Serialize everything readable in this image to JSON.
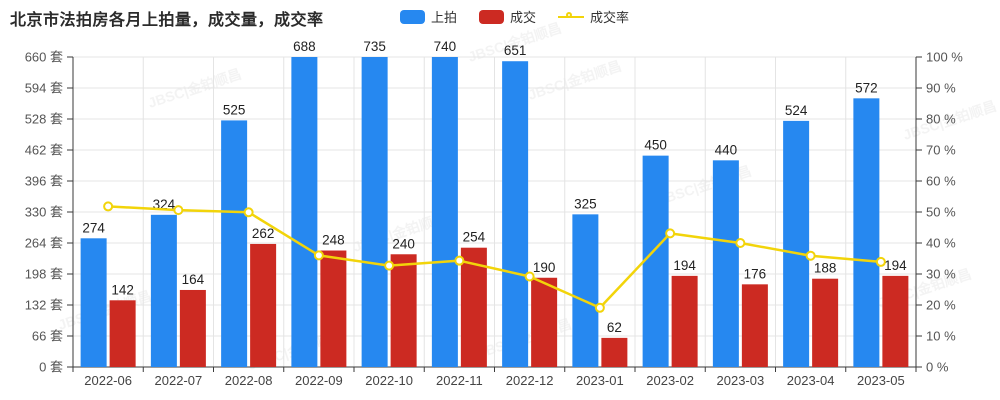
{
  "title": "北京市法拍房各月上拍量，成交量，成交率",
  "legend": [
    {
      "label": "上拍",
      "color": "#2688F0",
      "type": "bar"
    },
    {
      "label": "成交",
      "color": "#CC2A22",
      "type": "bar"
    },
    {
      "label": "成交率",
      "color": "#F2D40A",
      "type": "line"
    }
  ],
  "watermark": {
    "text": "JBSC|金铂顺昌"
  },
  "chart_data": {
    "type": "bar+line",
    "categories": [
      "2022-06",
      "2022-07",
      "2022-08",
      "2022-09",
      "2022-10",
      "2022-11",
      "2022-12",
      "2023-01",
      "2023-02",
      "2023-03",
      "2023-04",
      "2023-05"
    ],
    "series": [
      {
        "name": "上拍",
        "type": "bar",
        "axis": "left",
        "color": "#2688F0",
        "values": [
          274,
          324,
          525,
          688,
          735,
          740,
          651,
          325,
          450,
          440,
          524,
          572
        ]
      },
      {
        "name": "成交",
        "type": "bar",
        "axis": "left",
        "color": "#CC2A22",
        "values": [
          142,
          164,
          262,
          248,
          240,
          254,
          190,
          62,
          194,
          176,
          188,
          194
        ]
      },
      {
        "name": "成交率",
        "type": "line",
        "axis": "right",
        "color": "#F2D40A",
        "values": [
          51.8,
          50.6,
          49.9,
          36.0,
          32.7,
          34.3,
          29.2,
          19.1,
          43.1,
          40.0,
          35.9,
          33.9
        ]
      }
    ],
    "left_axis": {
      "min": 0,
      "max": 660,
      "step": 66,
      "tick_suffix": " 套"
    },
    "right_axis": {
      "min": 0,
      "max": 100,
      "step": 10,
      "tick_suffix": " %"
    },
    "grid": true,
    "legend_position": "top",
    "bar_labels_visible": true,
    "colors": {
      "grid_line": "#e4e4e4",
      "axis_line": "#3a3a3a",
      "tick_label": "#555555",
      "bar_label": "#222222",
      "marker_fill": "#ffffff"
    }
  }
}
